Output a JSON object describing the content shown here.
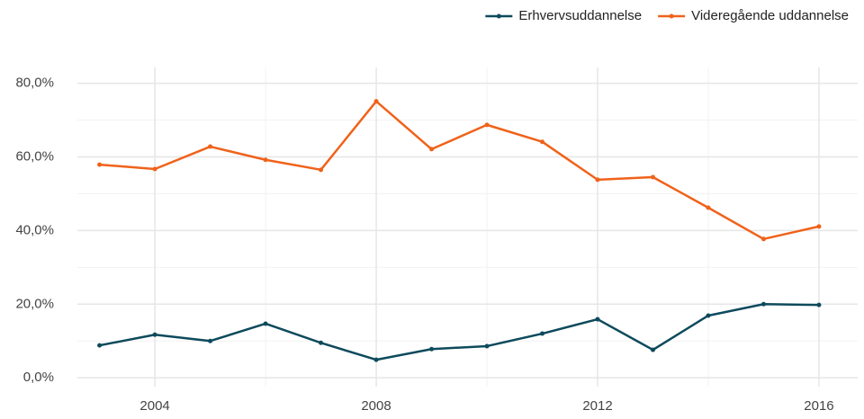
{
  "chart_data": {
    "type": "line",
    "x": [
      2003,
      2004,
      2005,
      2006,
      2007,
      2008,
      2009,
      2010,
      2011,
      2012,
      2013,
      2014,
      2015,
      2016
    ],
    "series": [
      {
        "name": "Erhvervsuddannelse",
        "color": "#0d4a5c",
        "values": [
          8.8,
          11.7,
          10.0,
          14.7,
          9.5,
          4.9,
          7.8,
          8.6,
          12.0,
          15.9,
          7.6,
          16.9,
          20.0,
          19.8
        ]
      },
      {
        "name": "Videregående uddannelse",
        "color": "#f0621a",
        "values": [
          57.9,
          56.7,
          62.8,
          59.2,
          56.5,
          75.1,
          62.1,
          68.7,
          64.1,
          53.8,
          54.5,
          46.2,
          37.7,
          41.1
        ]
      }
    ],
    "xlim": [
      2002.6,
      2016.7
    ],
    "xticks": [
      2004,
      2008,
      2012,
      2016
    ],
    "xminor": [
      2006,
      2010,
      2014
    ],
    "ylim": [
      -2.4,
      84.3
    ],
    "yticks": [
      {
        "value": 0,
        "label": "0,0%"
      },
      {
        "value": 20,
        "label": "20,0%"
      },
      {
        "value": 40,
        "label": "40,0%"
      },
      {
        "value": 60,
        "label": "60,0%"
      },
      {
        "value": 80,
        "label": "80,0%"
      }
    ],
    "yminor": [
      10,
      30,
      50,
      70
    ],
    "grid": true,
    "legend": "top-right"
  }
}
